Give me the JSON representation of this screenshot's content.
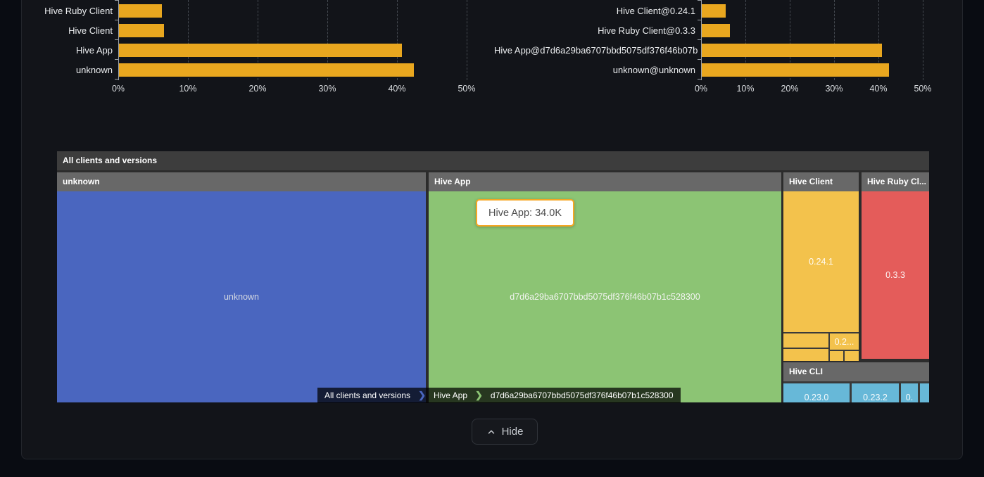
{
  "chart_data": [
    {
      "type": "bar",
      "orientation": "horizontal",
      "title": "",
      "categories": [
        "Hive Ruby Client",
        "Hive Client",
        "Hive App",
        "unknown"
      ],
      "values": [
        6.2,
        6.5,
        40.6,
        42.3
      ],
      "unit": "%",
      "xlim": [
        0,
        50
      ],
      "xticks": [
        "0%",
        "10%",
        "20%",
        "30%",
        "40%",
        "50%"
      ],
      "bar_color": "#e9a71f",
      "grid": "vertical-dashed",
      "legend": "none"
    },
    {
      "type": "bar",
      "orientation": "horizontal",
      "title": "",
      "categories": [
        "Hive Client@0.24.1",
        "Hive Ruby Client@0.3.3",
        "Hive App@d7d6a29ba6707bbd5075df376f46b07b",
        "unknown@unknown"
      ],
      "values": [
        5.4,
        6.3,
        40.6,
        42.2
      ],
      "unit": "%",
      "xlim": [
        0,
        50
      ],
      "xticks": [
        "0%",
        "10%",
        "20%",
        "30%",
        "40%",
        "50%"
      ],
      "bar_color": "#e9a71f",
      "grid": "vertical-dashed",
      "legend": "none"
    },
    {
      "type": "treemap",
      "title": "All clients and versions",
      "groups": [
        {
          "name": "unknown",
          "color": "#4a66bf",
          "cells": [
            {
              "label": "unknown"
            }
          ]
        },
        {
          "name": "Hive App",
          "color": "#8cc474",
          "cells": [
            {
              "label": "d7d6a29ba6707bbd5075df376f46b07b1c528300"
            }
          ]
        },
        {
          "name": "Hive Client",
          "color": "#f3c24c",
          "cells": [
            {
              "label": "0.24.1"
            },
            {
              "label": ""
            },
            {
              "label": "0.2..."
            },
            {
              "label": ""
            },
            {
              "label": ""
            },
            {
              "label": ""
            }
          ]
        },
        {
          "name": "Hive Ruby Cl...",
          "color": "#e45c5a",
          "cells": [
            {
              "label": "0.3.3"
            }
          ]
        },
        {
          "name": "Hive CLI",
          "color": "#67b8d8",
          "cells": [
            {
              "label": "0.23.0"
            },
            {
              "label": "0.23.2"
            },
            {
              "label": "0."
            },
            {
              "label": ""
            }
          ]
        }
      ],
      "breadcrumb": [
        "All clients and versions",
        "Hive App",
        "d7d6a29ba6707bbd5075df376f46b07b1c528300"
      ]
    }
  ],
  "tooltip": {
    "text": "Hive App: 34.0K"
  },
  "footer": {
    "hide_label": "Hide"
  },
  "colors": {
    "bar": "#e9a71f",
    "treemap_blue": "#4a66bf",
    "treemap_green": "#8cc474",
    "treemap_yellow": "#f3c24c",
    "treemap_red": "#e45c5a",
    "treemap_lightblue": "#67b8d8",
    "treemap_title_bg": "#3d3d3d",
    "treemap_header_bg": "#686868",
    "tooltip_border": "#f5a623"
  }
}
